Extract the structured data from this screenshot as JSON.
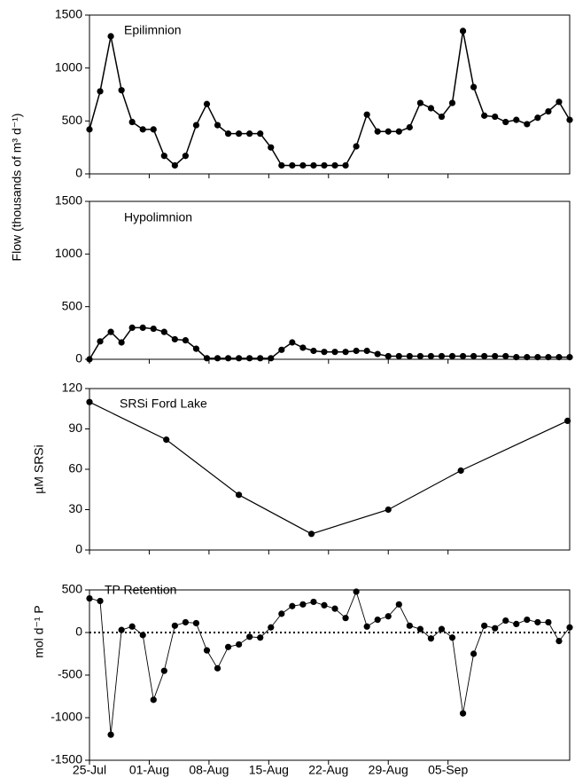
{
  "chart_data": [
    {
      "type": "line",
      "annotation": "Epilimnion",
      "ylabel": "Flow (thousands of m³ d⁻¹)",
      "color": "#000000",
      "x": [
        0,
        1.25,
        2.5,
        3.75,
        5,
        6.25,
        7.5,
        8.75,
        10,
        11.25,
        12.5,
        13.75,
        15,
        16.25,
        17.5,
        18.75,
        20,
        21.25,
        22.5,
        23.75,
        25,
        26.25,
        27.5,
        28.75,
        30,
        31.25,
        32.5,
        33.75,
        35,
        36.25,
        37.5,
        38.75,
        40,
        41.25,
        42.5,
        43.75,
        45,
        46.25,
        47.5,
        48.75,
        50,
        51.25,
        52.5,
        53.75,
        55,
        56.25
      ],
      "values": [
        420,
        780,
        1300,
        790,
        490,
        420,
        420,
        170,
        80,
        170,
        460,
        660,
        460,
        380,
        380,
        380,
        380,
        250,
        80,
        80,
        80,
        80,
        80,
        80,
        80,
        260,
        560,
        400,
        400,
        400,
        440,
        670,
        620,
        540,
        670,
        1350,
        820,
        550,
        540,
        490,
        510,
        470,
        530,
        590,
        680,
        510
      ],
      "xlim": [
        0,
        56.25
      ],
      "ylim": [
        0,
        1500
      ],
      "yticks": [
        0,
        500,
        1000,
        1500
      ]
    },
    {
      "type": "line",
      "annotation": "Hypolimnion",
      "color": "#000000",
      "x": [
        0,
        1.25,
        2.5,
        3.75,
        5,
        6.25,
        7.5,
        8.75,
        10,
        11.25,
        12.5,
        13.75,
        15,
        16.25,
        17.5,
        18.75,
        20,
        21.25,
        22.5,
        23.75,
        25,
        26.25,
        27.5,
        28.75,
        30,
        31.25,
        32.5,
        33.75,
        35,
        36.25,
        37.5,
        38.75,
        40,
        41.25,
        42.5,
        43.75,
        45,
        46.25,
        47.5,
        48.75,
        50,
        51.25,
        52.5,
        53.75,
        55,
        56.25
      ],
      "values": [
        0,
        170,
        260,
        160,
        300,
        300,
        290,
        260,
        190,
        180,
        100,
        10,
        10,
        10,
        10,
        10,
        10,
        10,
        90,
        160,
        110,
        80,
        70,
        70,
        70,
        80,
        80,
        50,
        30,
        30,
        30,
        30,
        30,
        30,
        30,
        30,
        30,
        30,
        30,
        30,
        20,
        20,
        20,
        20,
        20,
        20
      ],
      "xlim": [
        0,
        56.25
      ],
      "ylim": [
        0,
        1500
      ],
      "yticks": [
        0,
        500,
        1000,
        1500
      ]
    },
    {
      "type": "line",
      "annotation": "SRSi Ford Lake",
      "ylabel": "µM SRSi",
      "color": "#000000",
      "x": [
        0,
        9,
        17.5,
        26,
        35,
        43.5,
        56
      ],
      "values": [
        110,
        82,
        41,
        12,
        30,
        59,
        96
      ],
      "xlim": [
        0,
        56.25
      ],
      "ylim": [
        0,
        120
      ],
      "yticks": [
        0,
        30,
        60,
        90,
        120
      ]
    },
    {
      "type": "line",
      "annotation": "TP Retention",
      "ylabel": "mol d⁻¹ P",
      "color": "#000000",
      "hline": 0,
      "x": [
        0,
        1.25,
        2.5,
        3.75,
        5,
        6.25,
        7.5,
        8.75,
        10,
        11.25,
        12.5,
        13.75,
        15,
        16.25,
        17.5,
        18.75,
        20,
        21.25,
        22.5,
        23.75,
        25,
        26.25,
        27.5,
        28.75,
        30,
        31.25,
        32.5,
        33.75,
        35,
        36.25,
        37.5,
        38.75,
        40,
        41.25,
        42.5,
        43.75,
        45,
        46.25,
        47.5,
        48.75,
        50,
        51.25,
        52.5,
        53.75,
        55,
        56.25
      ],
      "values": [
        400,
        370,
        -1200,
        30,
        70,
        -30,
        -790,
        -450,
        80,
        120,
        110,
        -210,
        -420,
        -170,
        -140,
        -50,
        -60,
        60,
        220,
        310,
        330,
        360,
        320,
        280,
        170,
        480,
        70,
        150,
        190,
        330,
        80,
        40,
        -70,
        40,
        -60,
        -950,
        -250,
        80,
        50,
        140,
        100,
        150,
        120,
        120,
        -100,
        60
      ],
      "xlim": [
        0,
        56.25
      ],
      "ylim": [
        -1500,
        500
      ],
      "yticks": [
        -1500,
        -1000,
        -500,
        0,
        500
      ],
      "xticks": [
        {
          "value": 0,
          "label": "25-Jul"
        },
        {
          "value": 7,
          "label": "01-Aug"
        },
        {
          "value": 14,
          "label": "08-Aug"
        },
        {
          "value": 21,
          "label": "15-Aug"
        },
        {
          "value": 28,
          "label": "22-Aug"
        },
        {
          "value": 35,
          "label": "29-Aug"
        },
        {
          "value": 42,
          "label": "05-Sep"
        }
      ]
    }
  ]
}
